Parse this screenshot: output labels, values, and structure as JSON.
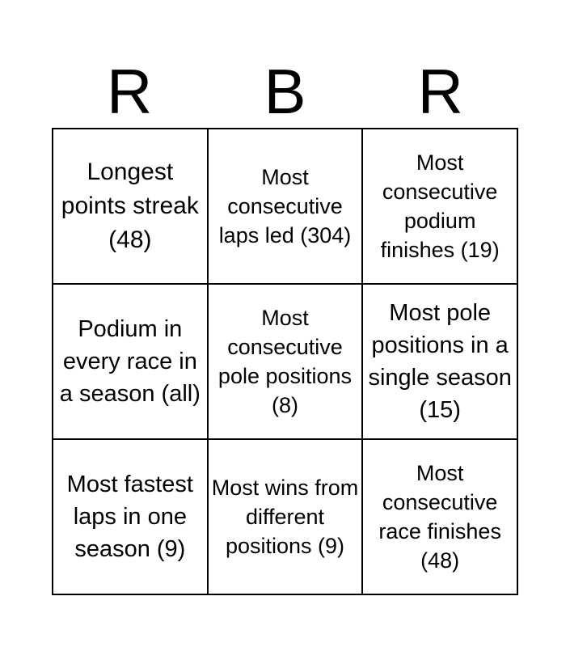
{
  "header": [
    "R",
    "B",
    "R"
  ],
  "cells": [
    "Longest points streak (48)",
    "Most consecutive laps led (304)",
    "Most consecutive podium finishes (19)",
    "Podium in every race in a season (all)",
    "Most consecutive pole positions (8)",
    "Most pole positions in a single season (15)",
    "Most fastest laps in one season (9)",
    "Most wins from different positions (9)",
    "Most consecutive race finishes (48)"
  ]
}
